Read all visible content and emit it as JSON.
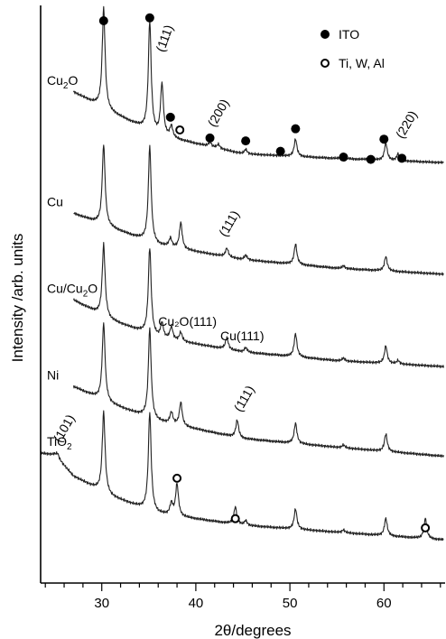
{
  "chart_data": {
    "type": "line",
    "xlabel": "2θ/degrees",
    "ylabel": "Intensity /arb. units",
    "xlim": [
      23.5,
      66.5
    ],
    "x_major_ticks": [
      30,
      40,
      50,
      60
    ],
    "x_minor_step": 2,
    "grid": false,
    "legend": {
      "placement": "top-right",
      "entries": [
        {
          "marker": "filled-circle",
          "label": "ITO"
        },
        {
          "marker": "open-circle",
          "label": "Ti, W, Al"
        }
      ]
    },
    "series": [
      {
        "name": "Cu₂O",
        "label_main": "Cu",
        "label_sub": "2",
        "label_tail": "O",
        "baseline": [
          [
            27,
            0.15
          ],
          [
            31,
            0.185
          ],
          [
            36,
            0.225
          ],
          [
            45,
            0.257
          ],
          [
            55,
            0.265
          ],
          [
            66,
            0.272
          ]
        ],
        "peaks": [
          [
            30.2,
            0.175
          ],
          [
            35.1,
            0.19
          ],
          [
            36.4,
            0.09
          ],
          [
            37.4,
            0.02
          ],
          [
            41.5,
            0.008
          ],
          [
            42.4,
            0.007
          ],
          [
            45.3,
            0.008
          ],
          [
            50.6,
            0.03
          ],
          [
            55.7,
            0.006
          ],
          [
            58.5,
            0.005
          ],
          [
            60.2,
            0.03
          ],
          [
            61.5,
            0.012
          ]
        ],
        "annotations": [
          {
            "text": "(111)",
            "x": 36.6,
            "y": 0.082,
            "rotate": -70
          },
          {
            "text": "(200)",
            "x": 42.0,
            "y": 0.212,
            "rotate": -60
          },
          {
            "text": "(220)",
            "x": 62.0,
            "y": 0.232,
            "rotate": -60
          }
        ],
        "markers": [
          {
            "type": "filled",
            "x": 30.2,
            "y": 0.0
          },
          {
            "type": "filled",
            "x": 35.1,
            "y": -0.005
          },
          {
            "type": "filled",
            "x": 37.3,
            "y": 0.167
          },
          {
            "type": "open",
            "x": 38.3,
            "y": 0.189
          },
          {
            "type": "filled",
            "x": 41.5,
            "y": 0.203
          },
          {
            "type": "filled",
            "x": 45.3,
            "y": 0.208
          },
          {
            "type": "filled",
            "x": 49.0,
            "y": 0.226
          },
          {
            "type": "filled",
            "x": 50.6,
            "y": 0.187
          },
          {
            "type": "filled",
            "x": 55.7,
            "y": 0.236
          },
          {
            "type": "filled",
            "x": 58.6,
            "y": 0.24
          },
          {
            "type": "filled",
            "x": 60.0,
            "y": 0.205
          },
          {
            "type": "filled",
            "x": 61.9,
            "y": 0.238
          }
        ]
      },
      {
        "name": "Cu",
        "label_main": "Cu",
        "label_sub": "",
        "label_tail": "",
        "baseline": [
          [
            27,
            0.36
          ],
          [
            31,
            0.385
          ],
          [
            36,
            0.415
          ],
          [
            45,
            0.44
          ],
          [
            55,
            0.455
          ],
          [
            66,
            0.465
          ]
        ],
        "peaks": [
          [
            30.2,
            0.14
          ],
          [
            35.1,
            0.165
          ],
          [
            37.3,
            0.015
          ],
          [
            38.4,
            0.045
          ],
          [
            43.3,
            0.015
          ],
          [
            45.3,
            0.008
          ],
          [
            50.6,
            0.035
          ],
          [
            55.7,
            0.005
          ],
          [
            60.2,
            0.025
          ]
        ],
        "annotations": [
          {
            "text": "(111)",
            "x": 43.2,
            "y": 0.402,
            "rotate": -60
          }
        ],
        "markers": []
      },
      {
        "name": "Cu/Cu₂O",
        "label_main": "Cu/Cu",
        "label_sub": "2",
        "label_tail": "O",
        "baseline": [
          [
            27,
            0.51
          ],
          [
            31,
            0.545
          ],
          [
            36,
            0.575
          ],
          [
            45,
            0.6
          ],
          [
            55,
            0.615
          ],
          [
            66,
            0.625
          ]
        ],
        "peaks": [
          [
            30.2,
            0.125
          ],
          [
            35.1,
            0.15
          ],
          [
            36.4,
            0.025
          ],
          [
            37.4,
            0.022
          ],
          [
            38.4,
            0.015
          ],
          [
            43.3,
            0.02
          ],
          [
            45.3,
            0.008
          ],
          [
            50.6,
            0.04
          ],
          [
            55.7,
            0.005
          ],
          [
            60.2,
            0.03
          ],
          [
            61.5,
            0.006
          ]
        ],
        "annotations": [
          {
            "text": "Cu₂O(111)",
            "x": 36.0,
            "y": 0.555,
            "rotate": 0
          },
          {
            "text": "Cu(111)",
            "x": 42.6,
            "y": 0.58,
            "rotate": 0
          }
        ],
        "markers": []
      },
      {
        "name": "Ni",
        "label_main": "Ni",
        "label_sub": "",
        "label_tail": "",
        "baseline": [
          [
            27,
            0.66
          ],
          [
            31,
            0.69
          ],
          [
            36,
            0.72
          ],
          [
            45,
            0.75
          ],
          [
            55,
            0.765
          ],
          [
            66,
            0.78
          ]
        ],
        "peaks": [
          [
            30.2,
            0.135
          ],
          [
            35.1,
            0.155
          ],
          [
            37.4,
            0.02
          ],
          [
            38.4,
            0.04
          ],
          [
            44.4,
            0.03
          ],
          [
            50.6,
            0.035
          ],
          [
            55.7,
            0.005
          ],
          [
            60.2,
            0.03
          ]
        ],
        "annotations": [
          {
            "text": "(111)",
            "x": 44.8,
            "y": 0.705,
            "rotate": -60
          }
        ],
        "markers": []
      },
      {
        "name": "TiO₂",
        "label_main": "TiO",
        "label_sub": "2",
        "label_tail": "",
        "baseline": [
          [
            23.5,
            0.775
          ],
          [
            25.0,
            0.778
          ],
          [
            27,
            0.815
          ],
          [
            31,
            0.85
          ],
          [
            36,
            0.88
          ],
          [
            45,
            0.9
          ],
          [
            55,
            0.912
          ],
          [
            66,
            0.925
          ]
        ],
        "peaks": [
          [
            25.3,
            0.008
          ],
          [
            30.2,
            0.14
          ],
          [
            35.1,
            0.17
          ],
          [
            37.4,
            0.02
          ],
          [
            38.0,
            0.055
          ],
          [
            44.2,
            0.03
          ],
          [
            45.3,
            0.008
          ],
          [
            50.6,
            0.035
          ],
          [
            55.7,
            0.005
          ],
          [
            60.2,
            0.03
          ],
          [
            64.4,
            0.035
          ]
        ],
        "annotations": [
          {
            "text": "(101)",
            "x": 25.6,
            "y": 0.758,
            "rotate": -60
          }
        ],
        "markers": [
          {
            "type": "open",
            "x": 38.0,
            "y": 0.792
          },
          {
            "type": "open",
            "x": 44.2,
            "y": 0.862
          },
          {
            "type": "open",
            "x": 64.4,
            "y": 0.878
          }
        ]
      }
    ]
  }
}
